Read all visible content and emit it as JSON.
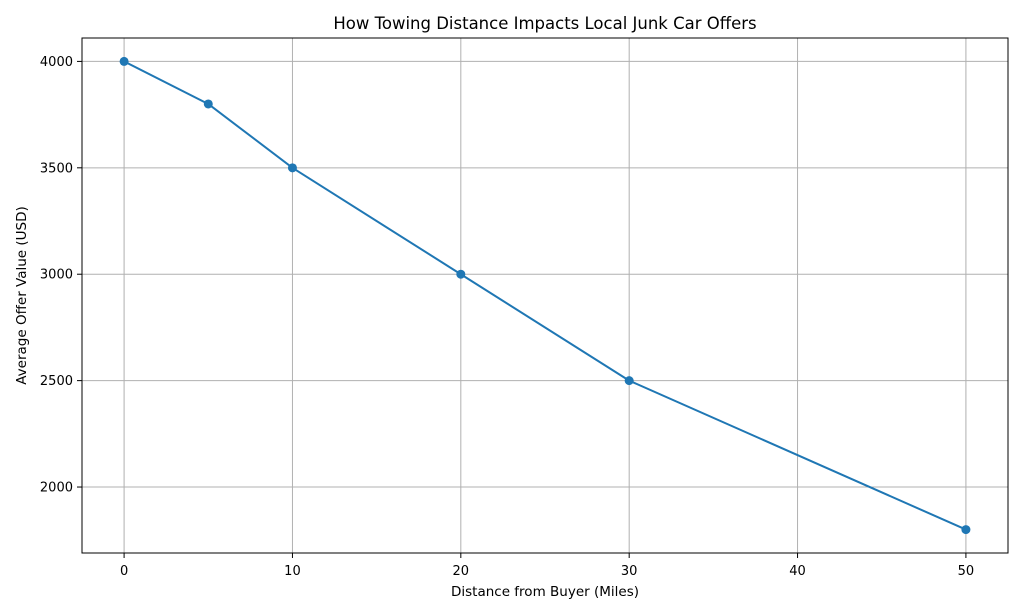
{
  "chart_data": {
    "type": "line",
    "title": "How Towing Distance Impacts Local Junk Car Offers",
    "xlabel": "Distance from Buyer (Miles)",
    "ylabel": "Average Offer Value (USD)",
    "x": [
      0,
      5,
      10,
      20,
      30,
      50
    ],
    "series": [
      {
        "name": "Average Offer Value",
        "values": [
          4000,
          3800,
          3500,
          3000,
          2500,
          1800
        ]
      }
    ],
    "xlim": [
      -2.5,
      52.5
    ],
    "ylim": [
      1690,
      4110
    ],
    "xticks": [
      0,
      10,
      20,
      30,
      40,
      50
    ],
    "yticks": [
      2000,
      2500,
      3000,
      3500,
      4000
    ],
    "grid": true,
    "line_color": "#1f77b4",
    "grid_color": "#b0b0b0"
  }
}
